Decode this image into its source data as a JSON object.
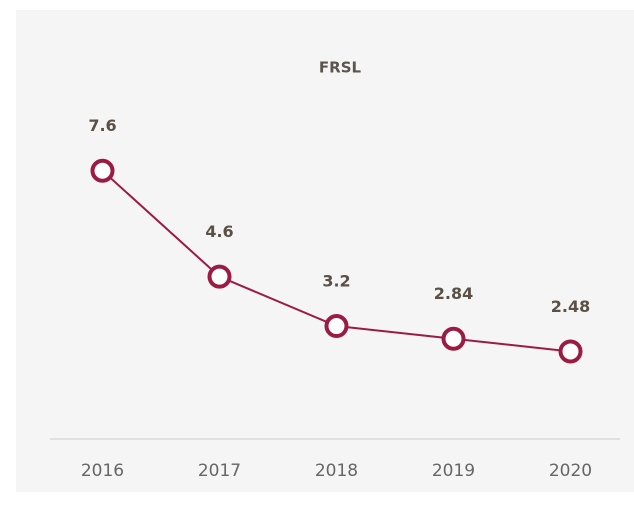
{
  "chart_data": {
    "type": "line",
    "title": "FRSL",
    "categories": [
      "2016",
      "2017",
      "2018",
      "2019",
      "2020"
    ],
    "series": [
      {
        "name": "FRSL",
        "color": "#9b1b43",
        "values": [
          7.6,
          4.6,
          3.2,
          2.84,
          2.48
        ]
      }
    ],
    "ylim": [
      0,
      10
    ]
  }
}
